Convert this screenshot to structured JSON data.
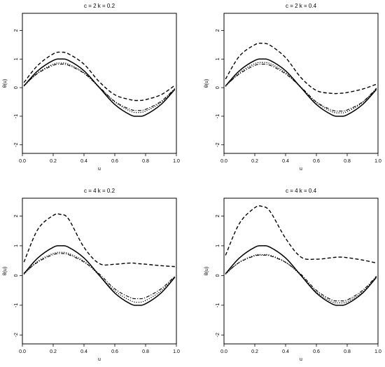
{
  "chart_data": [
    {
      "type": "line",
      "title": "c = 2  k = 0.2",
      "xlabel": "u",
      "ylabel": "θ(u)",
      "xlim": [
        0,
        1
      ],
      "ylim": [
        -2.3,
        2.6
      ],
      "xticks": [
        "0.0",
        "0.2",
        "0.4",
        "0.6",
        "0.8",
        "1.0"
      ],
      "yticks": [
        "-2",
        "-1",
        "0",
        "1",
        "2"
      ],
      "x": [
        0.01,
        0.1,
        0.2,
        0.25,
        0.3,
        0.4,
        0.5,
        0.6,
        0.7,
        0.75,
        0.8,
        0.9,
        0.99
      ],
      "series": [
        {
          "style": "solid",
          "values": [
            0.06,
            0.59,
            0.95,
            1.0,
            0.95,
            0.59,
            0.0,
            -0.59,
            -0.95,
            -1.0,
            -0.95,
            -0.59,
            -0.06
          ]
        },
        {
          "style": "dashed",
          "values": [
            0.18,
            0.78,
            1.18,
            1.24,
            1.18,
            0.82,
            0.2,
            -0.25,
            -0.42,
            -0.45,
            -0.42,
            -0.25,
            0.08
          ]
        },
        {
          "style": "dotted",
          "values": [
            0.05,
            0.52,
            0.82,
            0.86,
            0.82,
            0.52,
            0.0,
            -0.5,
            -0.82,
            -0.87,
            -0.82,
            -0.52,
            -0.05
          ]
        },
        {
          "style": "dotdash",
          "values": [
            0.08,
            0.5,
            0.78,
            0.82,
            0.78,
            0.5,
            0.02,
            -0.48,
            -0.76,
            -0.8,
            -0.76,
            -0.48,
            -0.03
          ]
        }
      ]
    },
    {
      "type": "line",
      "title": "c = 2  k = 0.4",
      "xlabel": "u",
      "ylabel": "θ(u)",
      "xlim": [
        0,
        1
      ],
      "ylim": [
        -2.3,
        2.6
      ],
      "xticks": [
        "0.0",
        "0.2",
        "0.4",
        "0.6",
        "0.8",
        "1.0"
      ],
      "yticks": [
        "-2",
        "-1",
        "0",
        "1",
        "2"
      ],
      "x": [
        0.01,
        0.1,
        0.2,
        0.25,
        0.3,
        0.4,
        0.5,
        0.6,
        0.7,
        0.75,
        0.8,
        0.9,
        0.99
      ],
      "series": [
        {
          "style": "solid",
          "values": [
            0.06,
            0.59,
            0.95,
            1.0,
            0.95,
            0.59,
            0.0,
            -0.59,
            -0.95,
            -1.0,
            -0.95,
            -0.59,
            -0.06
          ]
        },
        {
          "style": "dashed",
          "values": [
            0.3,
            1.1,
            1.5,
            1.55,
            1.48,
            1.05,
            0.35,
            -0.1,
            -0.2,
            -0.2,
            -0.17,
            -0.05,
            0.12
          ]
        },
        {
          "style": "dotted",
          "values": [
            0.04,
            0.52,
            0.84,
            0.88,
            0.84,
            0.52,
            0.0,
            -0.52,
            -0.84,
            -0.88,
            -0.84,
            -0.52,
            -0.04
          ]
        },
        {
          "style": "dotdash",
          "values": [
            0.07,
            0.48,
            0.78,
            0.82,
            0.78,
            0.48,
            0.02,
            -0.5,
            -0.78,
            -0.82,
            -0.78,
            -0.5,
            -0.02
          ]
        }
      ]
    },
    {
      "type": "line",
      "title": "c = 4  k = 0.2",
      "xlabel": "u",
      "ylabel": "θ(u)",
      "xlim": [
        0,
        1
      ],
      "ylim": [
        -2.3,
        2.6
      ],
      "xticks": [
        "0.0",
        "0.2",
        "0.4",
        "0.6",
        "0.8",
        "1.0"
      ],
      "yticks": [
        "-2",
        "-1",
        "0",
        "1",
        "2"
      ],
      "x": [
        0.01,
        0.1,
        0.2,
        0.25,
        0.3,
        0.4,
        0.5,
        0.6,
        0.7,
        0.75,
        0.8,
        0.9,
        0.99
      ],
      "series": [
        {
          "style": "solid",
          "values": [
            0.06,
            0.59,
            0.95,
            1.0,
            0.95,
            0.59,
            0.0,
            -0.59,
            -0.95,
            -1.0,
            -0.95,
            -0.59,
            -0.06
          ]
        },
        {
          "style": "dashed",
          "values": [
            0.45,
            1.55,
            2.02,
            2.05,
            1.9,
            0.95,
            0.4,
            0.38,
            0.42,
            0.4,
            0.38,
            0.33,
            0.3
          ]
        },
        {
          "style": "dotted",
          "values": [
            0.04,
            0.48,
            0.74,
            0.78,
            0.74,
            0.48,
            0.0,
            -0.52,
            -0.84,
            -0.9,
            -0.84,
            -0.52,
            -0.04
          ]
        },
        {
          "style": "dotdash",
          "values": [
            0.08,
            0.45,
            0.7,
            0.74,
            0.7,
            0.45,
            0.05,
            -0.45,
            -0.74,
            -0.78,
            -0.74,
            -0.45,
            -0.02
          ]
        }
      ]
    },
    {
      "type": "line",
      "title": "c = 4  k = 0.4",
      "xlabel": "u",
      "ylabel": "θ(u)",
      "xlim": [
        0,
        1
      ],
      "ylim": [
        -2.3,
        2.6
      ],
      "xticks": [
        "0.0",
        "0.2",
        "0.4",
        "0.6",
        "0.8",
        "1.0"
      ],
      "yticks": [
        "-2",
        "-1",
        "0",
        "1",
        "2"
      ],
      "x": [
        0.01,
        0.1,
        0.2,
        0.25,
        0.3,
        0.4,
        0.5,
        0.6,
        0.7,
        0.75,
        0.8,
        0.9,
        0.99
      ],
      "series": [
        {
          "style": "solid",
          "values": [
            0.06,
            0.59,
            0.95,
            1.0,
            0.95,
            0.59,
            0.0,
            -0.59,
            -0.95,
            -1.0,
            -0.95,
            -0.59,
            -0.06
          ]
        },
        {
          "style": "dashed",
          "values": [
            0.68,
            1.75,
            2.28,
            2.32,
            2.15,
            1.25,
            0.62,
            0.55,
            0.6,
            0.62,
            0.6,
            0.52,
            0.42
          ]
        },
        {
          "style": "dotted",
          "values": [
            0.04,
            0.45,
            0.68,
            0.7,
            0.68,
            0.45,
            0.0,
            -0.55,
            -0.88,
            -0.92,
            -0.88,
            -0.55,
            -0.04
          ]
        },
        {
          "style": "dotdash",
          "values": [
            0.07,
            0.44,
            0.66,
            0.68,
            0.66,
            0.44,
            0.04,
            -0.5,
            -0.82,
            -0.85,
            -0.82,
            -0.5,
            -0.02
          ]
        }
      ]
    }
  ]
}
